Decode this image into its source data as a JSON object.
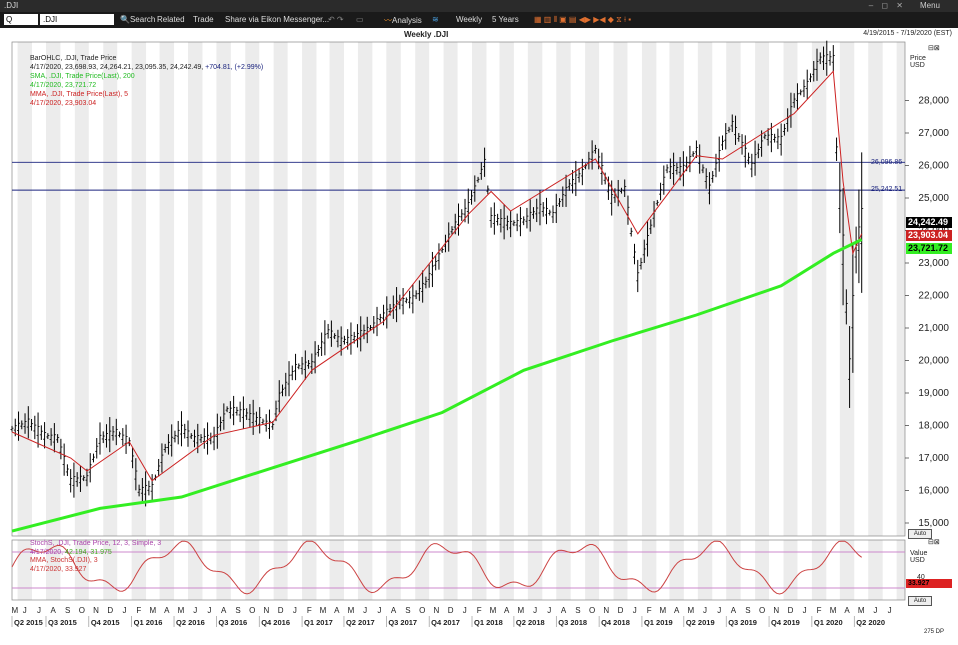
{
  "window": {
    "symbol": ".DJI",
    "menu_label": "Menu",
    "window_buttons": "– ◻ ✕"
  },
  "toolbar": {
    "q_label": "Q",
    "ric_value": ".DJI",
    "search": "Search",
    "related": "Related",
    "trade": "Trade",
    "share": "Share via Eikon Messenger...",
    "analysis": "Analysis",
    "interval": "Weekly",
    "range": "5 Years"
  },
  "header": {
    "title": "Weekly .DJI",
    "date_range": "4/19/2015 - 7/19/2020 (EST)"
  },
  "legend": {
    "line1": "BarOHLC, .DJI, Trade Price",
    "line2_prefix": "4/17/2020, 23,698.93, 24,264.21, 23,095.35, 24,242.49,",
    "line2_change": "+704.81, (+2.99%)",
    "line3": "SMA, .DJI, Trade Price(Last), 200",
    "line4": "4/17/2020, 23,721.72",
    "line5": "MMA, .DJI, Trade Price(Last), 5",
    "line6": "4/17/2020, 23,903.04"
  },
  "stoch_legend": {
    "line1": "StochS, .DJI, Trade Price, 12, 3, Simple, 3",
    "line2_prefix": "4/17/2020,",
    "line2_value": "42.194, 31.975",
    "line3": "MMA, StochS(.DJI), 3",
    "line4": "4/17/2020, 33.927"
  },
  "axis": {
    "price_title": "Price",
    "price_unit": "USD",
    "value_title": "Value",
    "value_unit": "USD",
    "auto": "Auto",
    "bars_info": "275 DP"
  },
  "colors": {
    "price": "#000000",
    "sma": "#33ee22",
    "mma": "#cc2222",
    "stoch": "#cc4444",
    "hline": "#1a237e",
    "stoch_hline": "#cc88cc",
    "grid": "#d9d9d9"
  },
  "badges": {
    "last": "24,242.49",
    "mma": "23,903.04",
    "sma": "23,721.72",
    "stoch": "33.927"
  },
  "chart_data": {
    "type": "line",
    "title": "Weekly .DJI",
    "ylabel": "Price USD",
    "ylim": [
      14600,
      29800
    ],
    "y_ticks": [
      15000,
      16000,
      17000,
      18000,
      19000,
      20000,
      21000,
      22000,
      23000,
      24000,
      25000,
      26000,
      27000,
      28000
    ],
    "y_tick_labels": [
      "15,000",
      "16,000",
      "17,000",
      "18,000",
      "19,000",
      "20,000",
      "21,000",
      "22,000",
      "23,000",
      "24,000",
      "25,000",
      "26,000",
      "27,000",
      "28,000"
    ],
    "x_range": [
      "2015-04-19",
      "2020-07-19"
    ],
    "month_labels": [
      "M",
      "J",
      "J",
      "A",
      "S",
      "O",
      "N",
      "D",
      "J",
      "F",
      "M",
      "A",
      "M",
      "J",
      "J",
      "A",
      "S",
      "O",
      "N",
      "D",
      "J",
      "F",
      "M",
      "A",
      "M",
      "J",
      "J",
      "A",
      "S",
      "O",
      "N",
      "D",
      "J",
      "F",
      "M",
      "A",
      "M",
      "J",
      "J",
      "A",
      "S",
      "O",
      "N",
      "D",
      "J",
      "F",
      "M",
      "A",
      "M",
      "J",
      "J",
      "A",
      "S",
      "O",
      "N",
      "D",
      "J",
      "F",
      "M",
      "A",
      "M",
      "J",
      "J"
    ],
    "quarter_labels": [
      "Q2 2015",
      "Q3 2015",
      "Q4 2015",
      "Q1 2016",
      "Q2 2016",
      "Q3 2016",
      "Q4 2016",
      "Q1 2017",
      "Q2 2017",
      "Q3 2017",
      "Q4 2017",
      "Q1 2018",
      "Q2 2018",
      "Q3 2018",
      "Q4 2018",
      "Q1 2019",
      "Q2 2019",
      "Q3 2019",
      "Q4 2019",
      "Q1 2020",
      "Q2 2020"
    ],
    "horizontal_lines": [
      {
        "value": 26096.86,
        "label": "26,096.86"
      },
      {
        "value": 25242.51,
        "label": "25,242.51"
      }
    ],
    "series": [
      {
        "name": "BarOHLC, .DJI, Trade Price",
        "points": [
          [
            "2015-04-19",
            17900
          ],
          [
            "2015-05-24",
            18100
          ],
          [
            "2015-06-28",
            17700
          ],
          [
            "2015-07-26",
            17600
          ],
          [
            "2015-08-23",
            16300
          ],
          [
            "2015-09-27",
            16400
          ],
          [
            "2015-10-25",
            17600
          ],
          [
            "2015-11-29",
            17800
          ],
          [
            "2015-12-27",
            17500
          ],
          [
            "2016-01-17",
            16000
          ],
          [
            "2016-02-14",
            16100
          ],
          [
            "2016-03-13",
            17300
          ],
          [
            "2016-04-17",
            17900
          ],
          [
            "2016-05-15",
            17600
          ],
          [
            "2016-06-26",
            17600
          ],
          [
            "2016-07-24",
            18500
          ],
          [
            "2016-08-28",
            18400
          ],
          [
            "2016-09-25",
            18200
          ],
          [
            "2016-10-30",
            18000
          ],
          [
            "2016-11-13",
            18900
          ],
          [
            "2016-12-18",
            19800
          ],
          [
            "2017-01-22",
            19900
          ],
          [
            "2017-02-26",
            20900
          ],
          [
            "2017-03-26",
            20600
          ],
          [
            "2017-04-23",
            20700
          ],
          [
            "2017-05-28",
            21000
          ],
          [
            "2017-06-25",
            21400
          ],
          [
            "2017-07-30",
            21800
          ],
          [
            "2017-08-27",
            21900
          ],
          [
            "2017-09-24",
            22400
          ],
          [
            "2017-10-29",
            23400
          ],
          [
            "2017-11-26",
            24200
          ],
          [
            "2017-12-24",
            24750
          ],
          [
            "2018-01-28",
            26100
          ],
          [
            "2018-02-11",
            24400
          ],
          [
            "2018-03-25",
            24200
          ],
          [
            "2018-04-22",
            24300
          ],
          [
            "2018-05-27",
            24700
          ],
          [
            "2018-06-24",
            24500
          ],
          [
            "2018-07-29",
            25400
          ],
          [
            "2018-08-26",
            25800
          ],
          [
            "2018-09-23",
            26500
          ],
          [
            "2018-10-28",
            25000
          ],
          [
            "2018-11-25",
            25300
          ],
          [
            "2018-12-23",
            22600
          ],
          [
            "2019-01-27",
            24500
          ],
          [
            "2019-02-24",
            25900
          ],
          [
            "2019-03-31",
            25900
          ],
          [
            "2019-04-28",
            26500
          ],
          [
            "2019-05-26",
            25300
          ],
          [
            "2019-06-23",
            26700
          ],
          [
            "2019-07-14",
            27300
          ],
          [
            "2019-08-25",
            26000
          ],
          [
            "2019-09-22",
            26900
          ],
          [
            "2019-10-27",
            26800
          ],
          [
            "2019-11-24",
            28000
          ],
          [
            "2019-12-22",
            28500
          ],
          [
            "2020-01-19",
            29300
          ],
          [
            "2020-02-16",
            29300
          ],
          [
            "2020-02-23",
            26500
          ],
          [
            "2020-03-08",
            23500
          ],
          [
            "2020-03-22",
            19800
          ],
          [
            "2020-04-05",
            23400
          ],
          [
            "2020-04-17",
            24242.49
          ]
        ]
      },
      {
        "name": "SMA, .DJI, Trade Price(Last), 200",
        "points": [
          [
            "2015-04-19",
            14750
          ],
          [
            "2015-10-25",
            15450
          ],
          [
            "2016-04-17",
            15800
          ],
          [
            "2016-10-30",
            16700
          ],
          [
            "2017-04-23",
            17500
          ],
          [
            "2017-10-29",
            18400
          ],
          [
            "2018-04-22",
            19700
          ],
          [
            "2018-10-28",
            20600
          ],
          [
            "2019-04-28",
            21400
          ],
          [
            "2019-10-27",
            22300
          ],
          [
            "2020-02-16",
            23300
          ],
          [
            "2020-04-17",
            23721.72
          ]
        ]
      },
      {
        "name": "MMA, .DJI, Trade Price(Last), 5",
        "points": [
          [
            "2015-04-19",
            17800
          ],
          [
            "2015-08-23",
            17000
          ],
          [
            "2015-09-27",
            16600
          ],
          [
            "2015-12-27",
            17500
          ],
          [
            "2016-02-14",
            16300
          ],
          [
            "2016-06-26",
            17700
          ],
          [
            "2016-10-30",
            18100
          ],
          [
            "2017-01-22",
            19700
          ],
          [
            "2017-06-25",
            21200
          ],
          [
            "2017-12-24",
            24500
          ],
          [
            "2018-02-11",
            25200
          ],
          [
            "2018-03-25",
            24600
          ],
          [
            "2018-09-23",
            26200
          ],
          [
            "2018-12-23",
            23900
          ],
          [
            "2019-04-28",
            26300
          ],
          [
            "2019-06-23",
            26200
          ],
          [
            "2019-11-24",
            27600
          ],
          [
            "2020-02-16",
            28900
          ],
          [
            "2020-03-08",
            25500
          ],
          [
            "2020-03-29",
            23300
          ],
          [
            "2020-04-17",
            23903.04
          ]
        ]
      }
    ]
  },
  "stoch_chart": {
    "ylim": [
      0,
      100
    ],
    "levels": [
      80,
      20
    ],
    "tick_labels": [
      "40"
    ],
    "last_value": 33.927
  }
}
